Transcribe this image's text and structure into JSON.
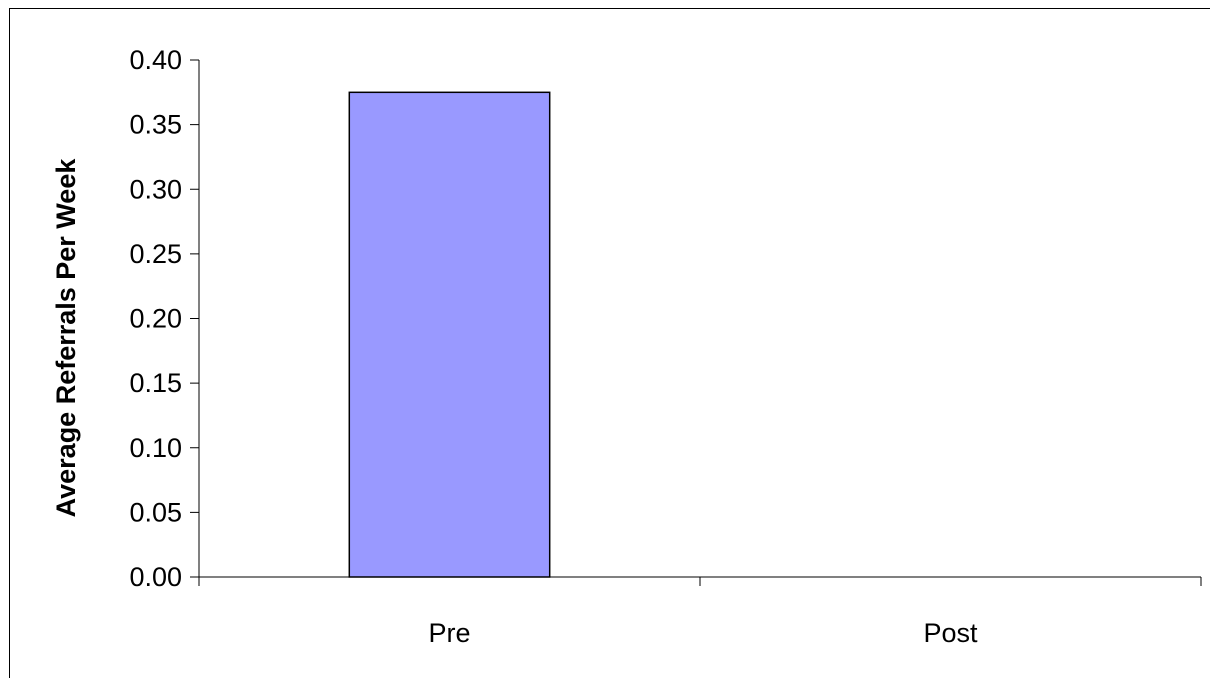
{
  "chart_data": {
    "type": "bar",
    "title": "",
    "xlabel": "",
    "ylabel": "Average Referrals Per Week",
    "categories": [
      "Pre",
      "Post"
    ],
    "values": [
      0.375,
      0
    ],
    "ylim": [
      0,
      0.4
    ],
    "yticks": [
      "0.00",
      "0.05",
      "0.10",
      "0.15",
      "0.20",
      "0.25",
      "0.30",
      "0.35",
      "0.40"
    ],
    "grid": false,
    "legend": "none",
    "bar_color": "#9999ff",
    "bar_edge_color": "#000000"
  }
}
